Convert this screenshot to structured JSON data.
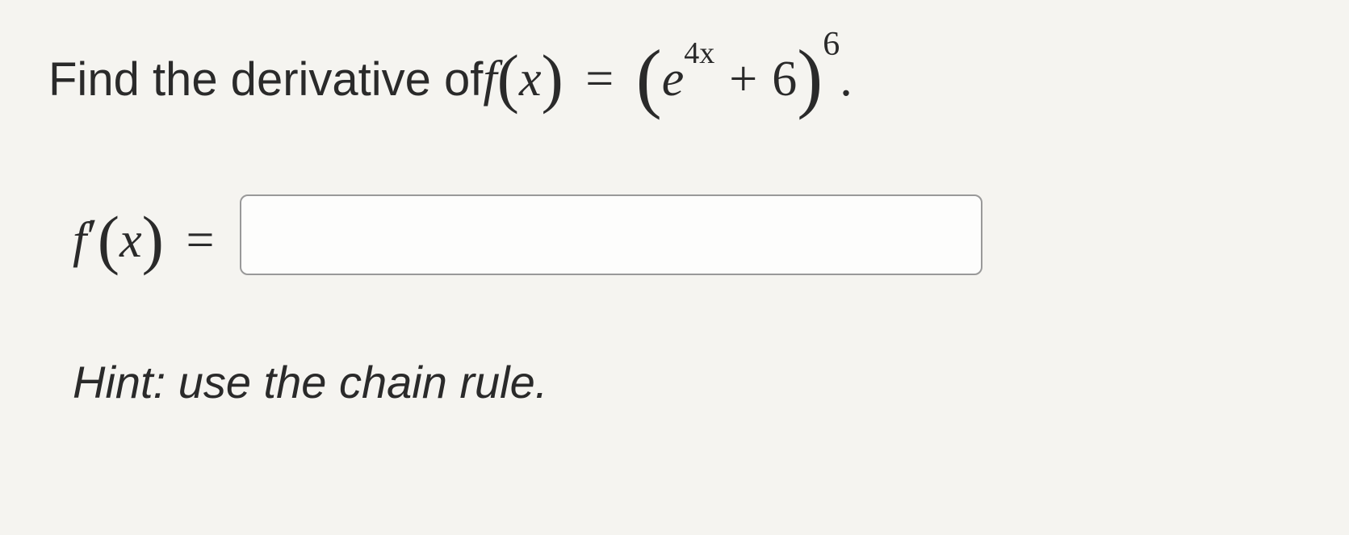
{
  "question": {
    "prompt_text": "Find the derivative of ",
    "func_name": "f",
    "func_arg": "x",
    "equals": "=",
    "base_e": "e",
    "exp_coef": "4",
    "exp_var": "x",
    "plus": "+",
    "constant": "6",
    "outer_power": "6",
    "period": "."
  },
  "answer": {
    "label_f": "f",
    "label_prime": "′",
    "label_arg": "x",
    "label_equals": "=",
    "input_value": "",
    "input_placeholder": ""
  },
  "hint": {
    "text": "Hint: use the chain rule."
  },
  "style": {
    "background_color": "#f5f4f0",
    "text_color": "#2a2a2a",
    "input_border_color": "#999999",
    "input_background": "#fdfdfc",
    "body_fontsize": 58,
    "math_fontsize": 62,
    "hint_fontsize": 56
  }
}
